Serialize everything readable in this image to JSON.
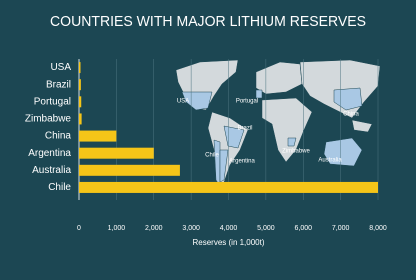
{
  "chart_data": {
    "type": "bar",
    "orientation": "horizontal",
    "title": "COUNTRIES WITH MAJOR LITHIUM RESERVES",
    "x_label": "Reserves (in 1,000t)",
    "categories": [
      "USA",
      "Brazil",
      "Portugal",
      "Zimbabwe",
      "China",
      "Argentina",
      "Australia",
      "Chile"
    ],
    "values": [
      40,
      50,
      60,
      70,
      1000,
      2000,
      2700,
      8000
    ],
    "color": "#f5c518",
    "xlim": [
      0,
      8000
    ],
    "xticks": [
      0,
      {
        "value": 1000,
        "label": "1,000"
      },
      {
        "value": 2000,
        "label": "2,000"
      },
      {
        "value": 3000,
        "label": "3,000"
      },
      {
        "value": 4000,
        "label": "4,000"
      },
      {
        "value": 5000,
        "label": "5,000"
      },
      {
        "value": 6000,
        "label": "6,000"
      },
      {
        "value": 7000,
        "label": "7,000"
      },
      {
        "value": 8000,
        "label": "8,000"
      }
    ],
    "grid": true,
    "annotations": [
      "USA",
      "Portugal",
      "China",
      "Brazil",
      "Chile",
      "Argentina",
      "Zimbabwe",
      "Australia"
    ]
  }
}
